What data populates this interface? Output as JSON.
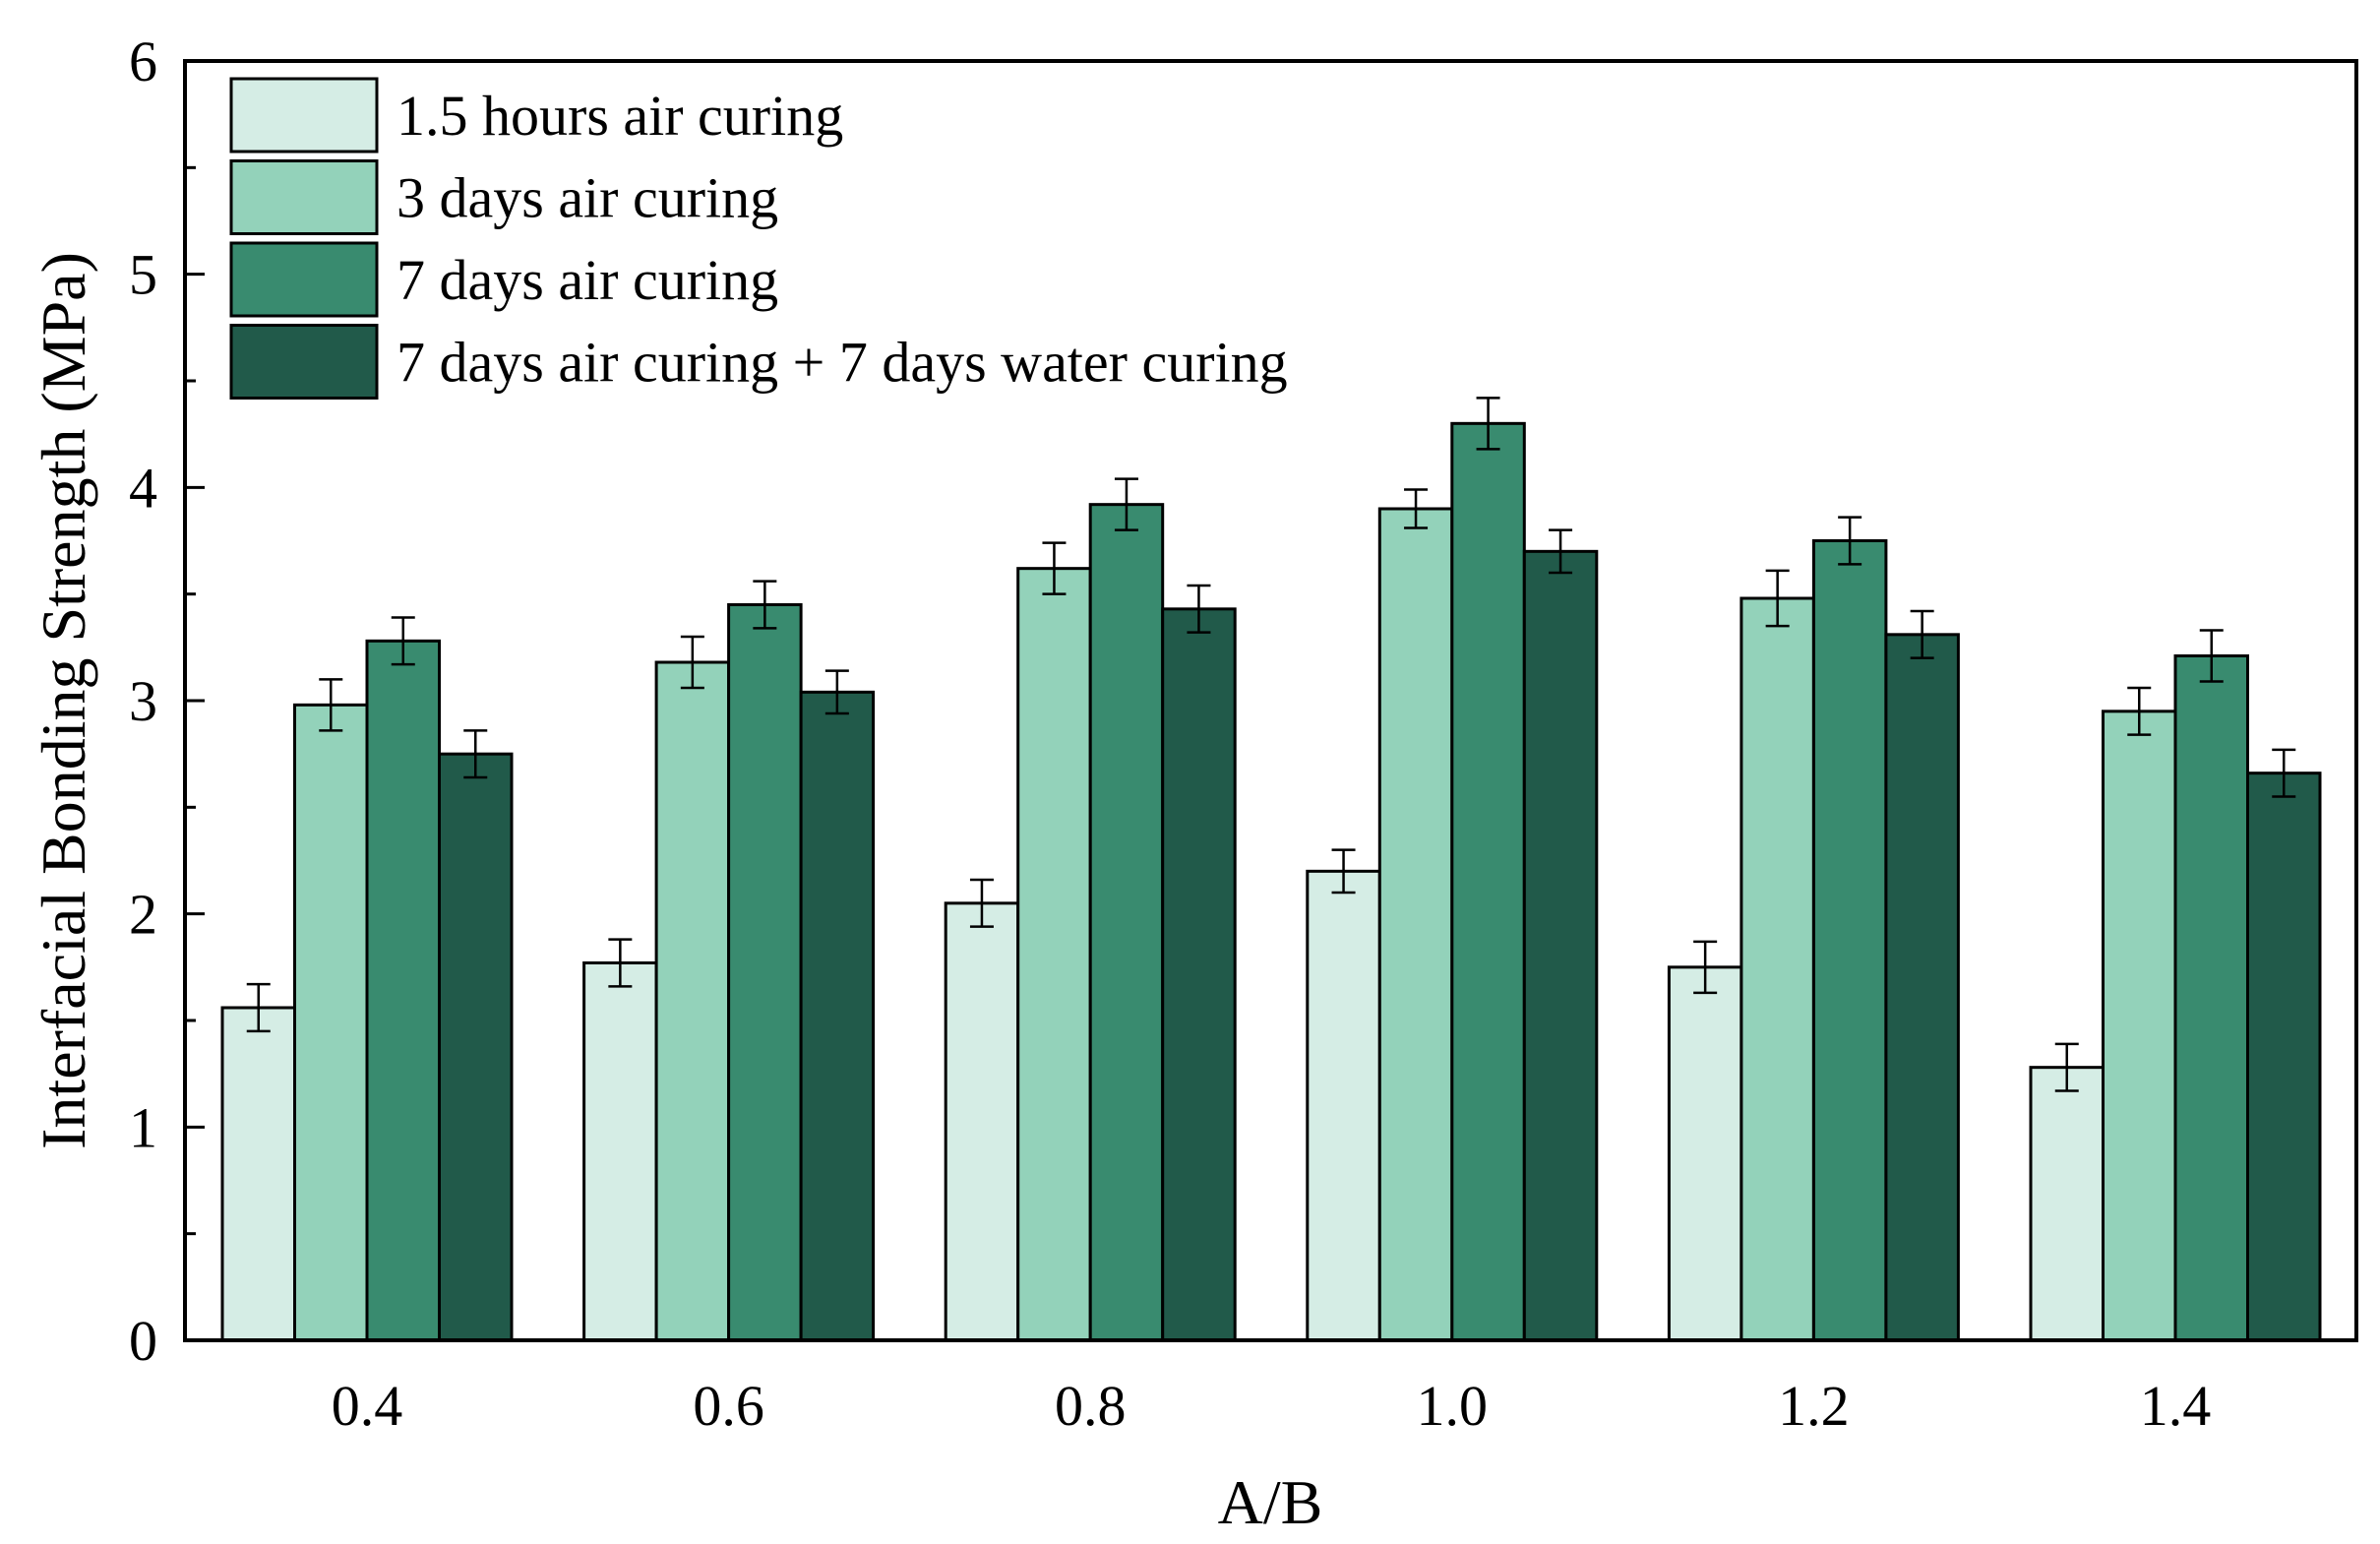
{
  "chart_data": {
    "type": "bar",
    "title": "",
    "xlabel": "A/B",
    "ylabel": "Interfacial Bonding Strength (MPa)",
    "ylim": [
      0,
      6
    ],
    "yticks": [
      "0",
      "1",
      "2",
      "3",
      "4",
      "5",
      "6"
    ],
    "categories": [
      "0.4",
      "0.6",
      "0.8",
      "1.0",
      "1.2",
      "1.4"
    ],
    "legend_position": "top-left",
    "series": [
      {
        "name": "1.5 hours air curing",
        "color": "#d5ede5",
        "values": [
          1.56,
          1.77,
          2.05,
          2.2,
          1.75,
          1.28
        ],
        "errors": [
          0.11,
          0.11,
          0.11,
          0.1,
          0.12,
          0.11
        ]
      },
      {
        "name": "3 days air curing",
        "color": "#93d2ba",
        "values": [
          2.98,
          3.18,
          3.62,
          3.9,
          3.48,
          2.95
        ],
        "errors": [
          0.12,
          0.12,
          0.12,
          0.09,
          0.13,
          0.11
        ]
      },
      {
        "name": "7 days air curing",
        "color": "#398b6f",
        "values": [
          3.28,
          3.45,
          3.92,
          4.3,
          3.75,
          3.21
        ],
        "errors": [
          0.11,
          0.11,
          0.12,
          0.12,
          0.11,
          0.12
        ]
      },
      {
        "name": "7 days air curing + 7 days water curing",
        "color": "#215a4a",
        "values": [
          2.75,
          3.04,
          3.43,
          3.7,
          3.31,
          2.66
        ],
        "errors": [
          0.11,
          0.1,
          0.11,
          0.1,
          0.11,
          0.11
        ]
      }
    ]
  }
}
